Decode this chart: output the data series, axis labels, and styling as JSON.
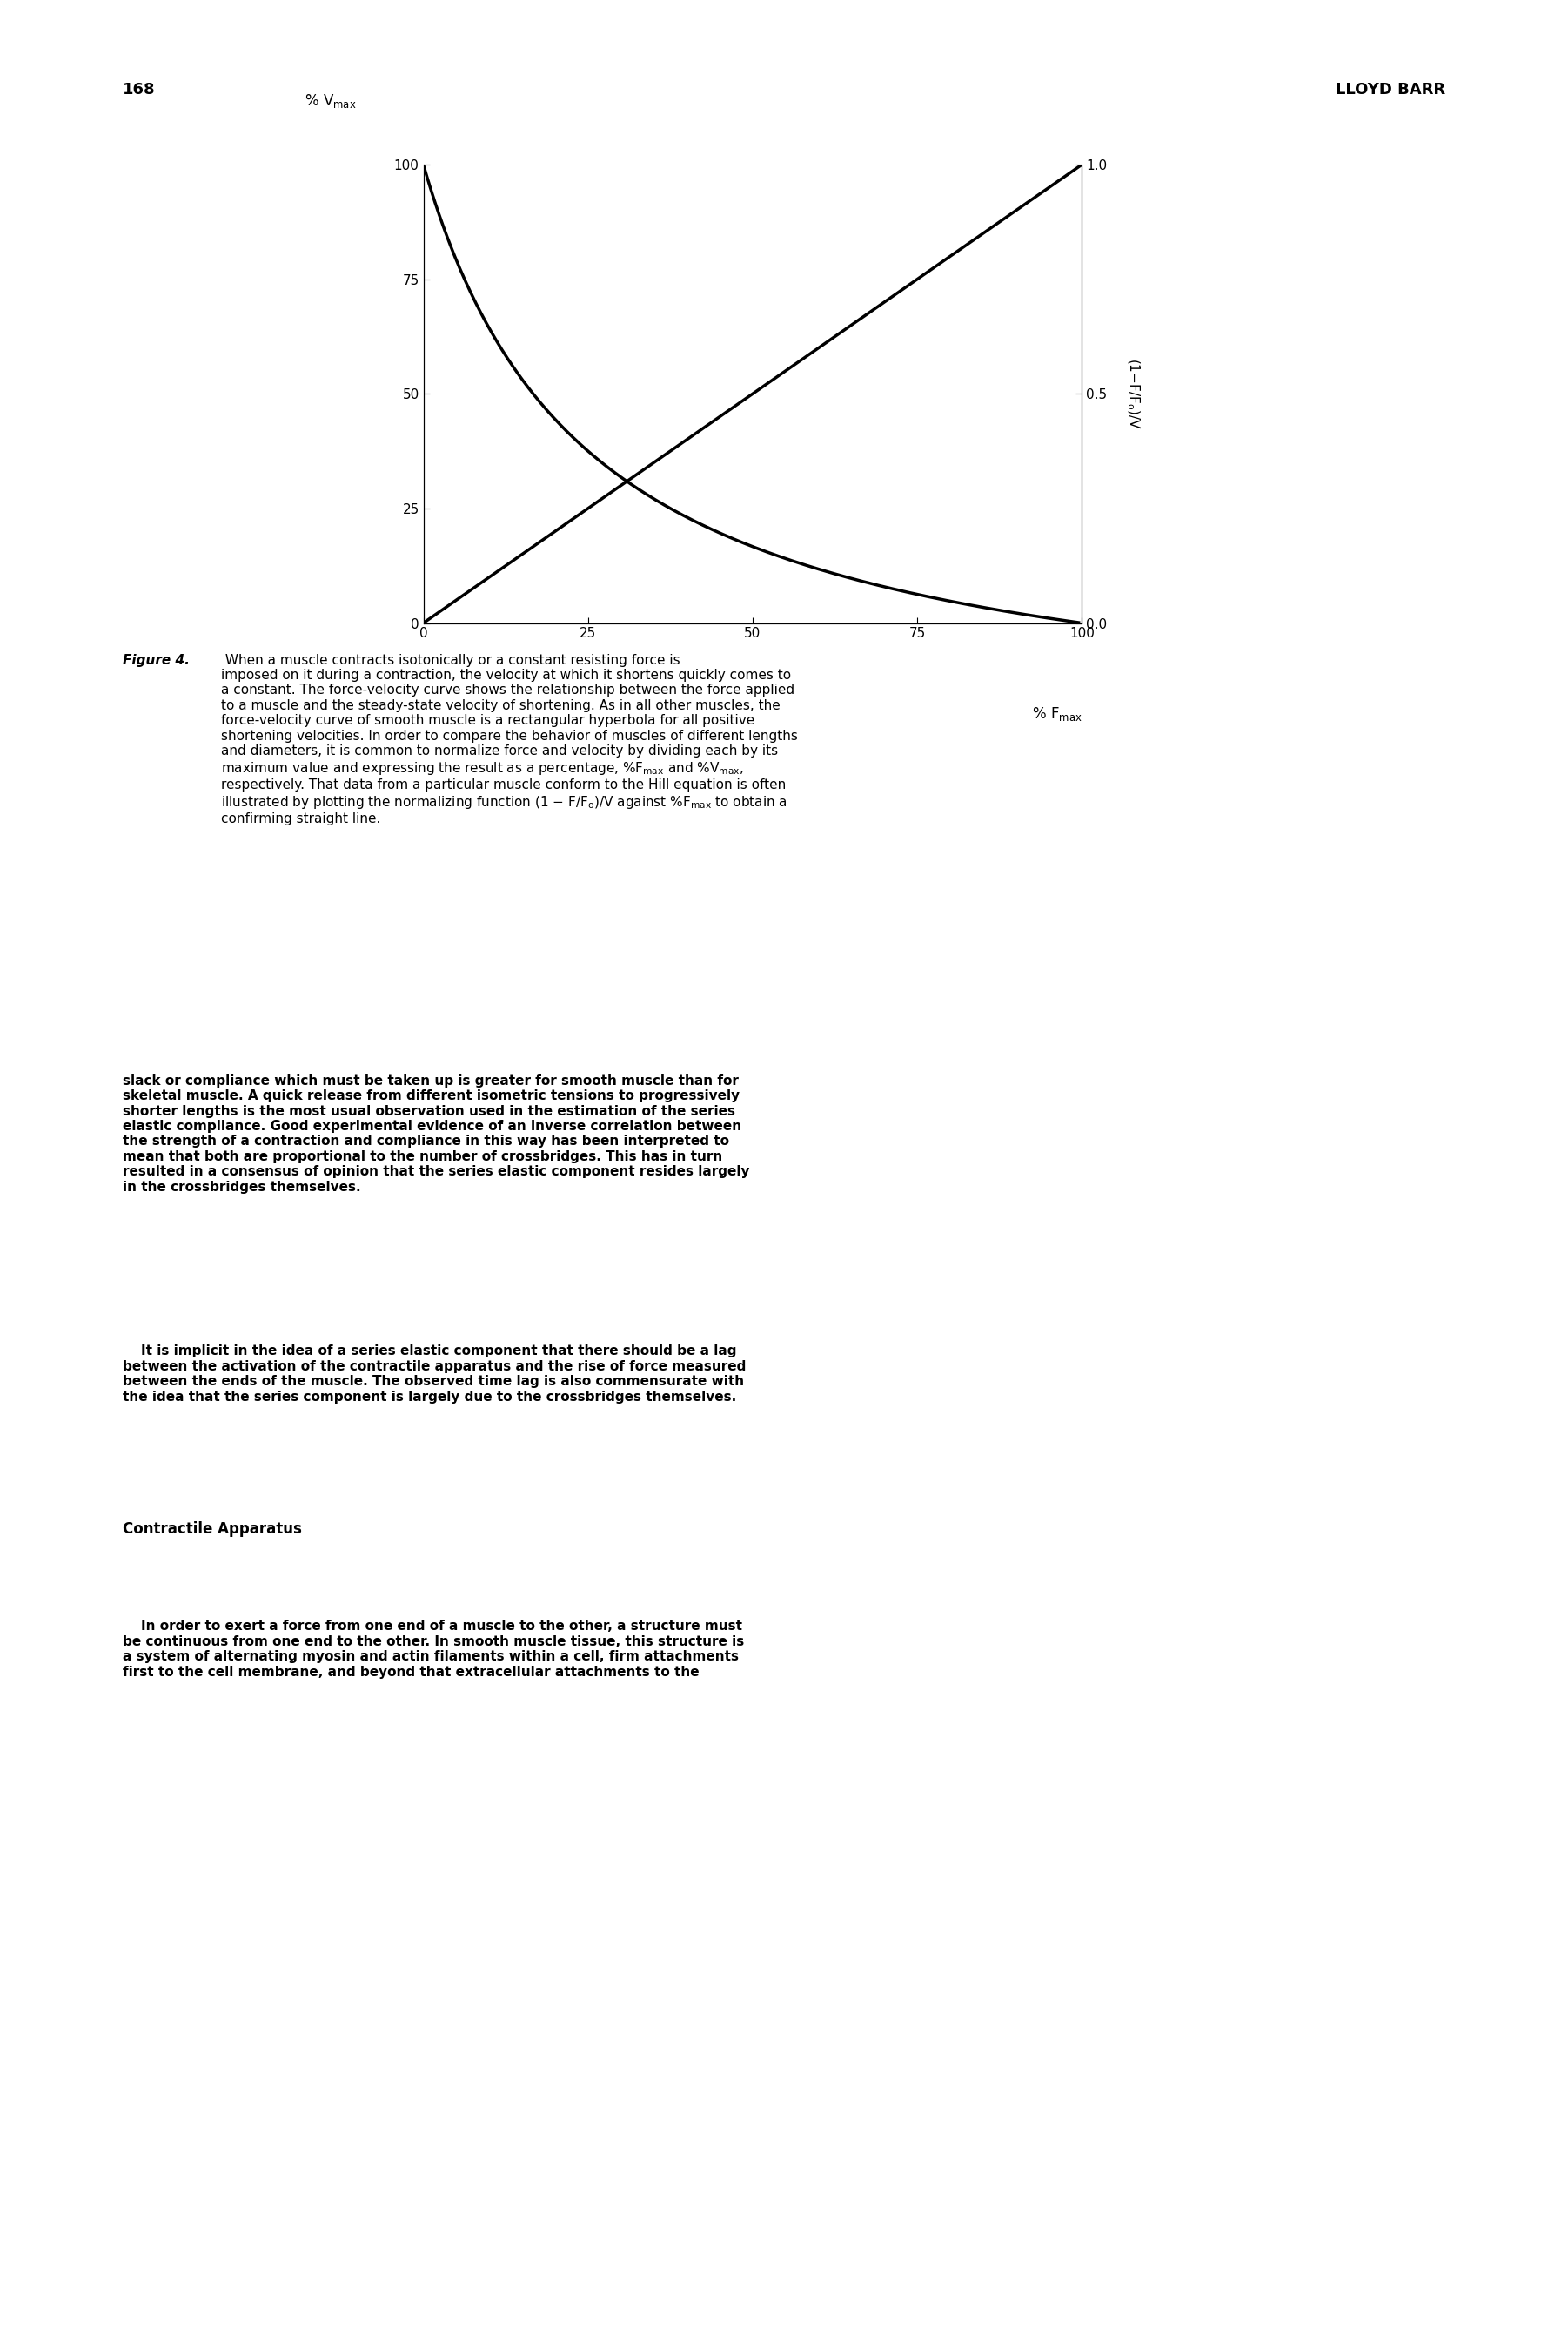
{
  "page_number": "168",
  "header_right": "LLOYD BARR",
  "figure_caption_bold": "Figure 4.",
  "figure_caption_text": " When a muscle contracts isotonically or a constant resisting force is imposed on it during a contraction, the velocity at which it shortens quickly comes to a constant. The force-velocity curve shows the relationship between the force applied to a muscle and the steady-state velocity of shortening. As in all other muscles, the force-velocity curve of smooth muscle is a rectangular hyperbola for all positive shortening velocities. In order to compare the behavior of muscles of different lengths and diameters, it is common to normalize force and velocity by dividing each by its maximum value and expressing the result as a percentage, %F",
  "figure_caption_text2": " and %V",
  "figure_caption_text3": ", respectively. That data from a particular muscle conform to the Hill equation is often illustrated by plotting the normalizing function (1 – F/F",
  "figure_caption_text4": ")/V against %F",
  "figure_caption_text5": " to obtain a confirming straight line.",
  "body_para1": "slack or compliance which must be taken up is greater for smooth muscle than for skeletal muscle. A quick release from different isometric tensions to progressively shorter lengths is the most usual observation used in the estimation of the series elastic compliance. Good experimental evidence of an inverse correlation between the strength of a contraction and compliance in this way has been interpreted to mean that both are proportional to the number of crossbridges. This has in turn resulted in a consensus of opinion that the series elastic component resides largely in the crossbridges themselves.",
  "body_para2": "It is implicit in the idea of a series elastic component that there should be a lag between the activation of the contractile apparatus and the rise of force measured between the ends of the muscle. The observed time lag is also commensurate with the idea that the series component is largely due to the crossbridges themselves.",
  "section_heading": "Contractile Apparatus",
  "body_para3": "In order to exert a force from one end of a muscle to the other, a structure must be continuous from one end to the other. In smooth muscle tissue, this structure is a system of alternating myosin and actin filaments within a cell, firm attachments first to the cell membrane, and beyond that extracellular attachments to the",
  "left_ylabel": "% V_max",
  "right_ylabel": "(1-F/F_o)/V",
  "xlabel": "% F_max",
  "xlim": [
    0,
    100
  ],
  "ylim_left": [
    0,
    100
  ],
  "ylim_right": [
    0,
    1
  ],
  "xticks": [
    0,
    25,
    50,
    75,
    100
  ],
  "yticks_left": [
    0,
    25,
    50,
    75,
    100
  ],
  "yticks_right": [
    0,
    0.5,
    1
  ],
  "background_color": "#ffffff",
  "line_color": "#000000",
  "line_width": 2.5,
  "font_color": "#000000"
}
